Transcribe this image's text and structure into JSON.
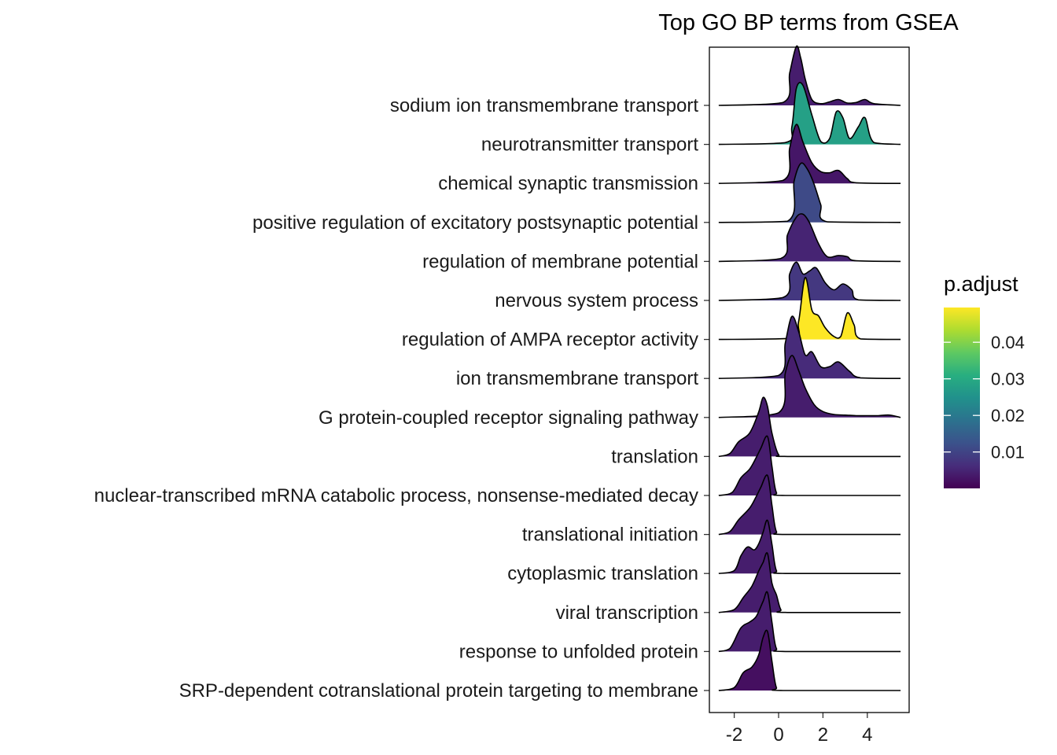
{
  "chart_data": {
    "type": "ridgeline",
    "title": "Top GO BP terms from GSEA",
    "xlabel": "",
    "ylabel": "",
    "xlim": [
      -3.1,
      5.8
    ],
    "xticks": [
      -2,
      0,
      2,
      4
    ],
    "xtick_labels": [
      "-2",
      "0",
      "2",
      "4"
    ],
    "grid": false,
    "colorbar": {
      "title": "p.adjust",
      "range": [
        5e-05,
        0.0495
      ],
      "ticks": [
        0.01,
        0.02,
        0.03,
        0.04
      ],
      "tick_labels": [
        "0.01",
        "0.02",
        "0.03",
        "0.04"
      ],
      "colormap": "viridis",
      "placement": "right"
    },
    "series": [
      {
        "name": "sodium ion transmembrane transport",
        "p_adjust": 0.004,
        "density_x": [
          -2.7,
          0.2,
          0.5,
          0.8,
          1.0,
          1.2,
          1.5,
          1.9,
          2.3,
          2.7,
          3.1,
          3.5,
          3.9,
          4.3,
          5.5
        ],
        "density_y": [
          0,
          0.05,
          0.55,
          1.0,
          0.8,
          0.45,
          0.1,
          0.03,
          0.06,
          0.1,
          0.04,
          0.05,
          0.1,
          0.03,
          0
        ]
      },
      {
        "name": "neurotransmitter transport",
        "p_adjust": 0.028,
        "density_x": [
          -2.7,
          0.3,
          0.6,
          0.8,
          1.1,
          1.5,
          1.9,
          2.3,
          2.6,
          2.9,
          3.2,
          3.6,
          3.9,
          4.3,
          5.5
        ],
        "density_y": [
          0,
          0.03,
          0.3,
          0.95,
          1.0,
          0.5,
          0.05,
          0.1,
          0.55,
          0.45,
          0.1,
          0.3,
          0.45,
          0.03,
          0
        ]
      },
      {
        "name": "chemical synaptic transmission",
        "p_adjust": 0.003,
        "density_x": [
          -2.7,
          0.2,
          0.5,
          0.8,
          1.1,
          1.5,
          1.9,
          2.3,
          2.7,
          3.1,
          3.5,
          5.5
        ],
        "density_y": [
          0,
          0.05,
          0.6,
          1.0,
          0.7,
          0.35,
          0.2,
          0.18,
          0.22,
          0.08,
          0.01,
          0
        ]
      },
      {
        "name": "positive regulation of excitatory postsynaptic potential",
        "p_adjust": 0.011,
        "density_x": [
          -2.7,
          0.4,
          0.7,
          1.0,
          1.3,
          1.6,
          1.9,
          2.2,
          5.5
        ],
        "density_y": [
          0,
          0.02,
          0.7,
          1.0,
          0.9,
          0.65,
          0.3,
          0.01,
          0
        ]
      },
      {
        "name": "regulation of membrane potential",
        "p_adjust": 0.005,
        "density_x": [
          -2.7,
          0.1,
          0.4,
          0.8,
          1.1,
          1.4,
          1.8,
          2.2,
          2.7,
          3.1,
          3.5,
          5.5
        ],
        "density_y": [
          0,
          0.05,
          0.45,
          0.75,
          0.8,
          0.65,
          0.3,
          0.08,
          0.1,
          0.08,
          0.01,
          0
        ]
      },
      {
        "name": "nervous system process",
        "p_adjust": 0.008,
        "density_x": [
          -2.7,
          0.2,
          0.5,
          0.8,
          1.1,
          1.4,
          1.7,
          2.1,
          2.5,
          2.9,
          3.3,
          3.6,
          5.5
        ],
        "density_y": [
          0,
          0.05,
          0.45,
          0.65,
          0.45,
          0.5,
          0.55,
          0.3,
          0.18,
          0.28,
          0.18,
          0.01,
          0
        ]
      },
      {
        "name": "regulation of AMPA receptor activity",
        "p_adjust": 0.0495,
        "density_x": [
          -2.7,
          0.6,
          0.9,
          1.2,
          1.5,
          1.8,
          2.1,
          2.5,
          2.8,
          3.1,
          3.4,
          3.7,
          5.5
        ],
        "density_y": [
          0,
          0.02,
          0.3,
          1.05,
          0.5,
          0.4,
          0.2,
          0.05,
          0.05,
          0.45,
          0.25,
          0.01,
          0
        ]
      },
      {
        "name": "ion transmembrane transport",
        "p_adjust": 0.006,
        "density_x": [
          -2.7,
          0.0,
          0.3,
          0.6,
          0.9,
          1.2,
          1.5,
          1.9,
          2.3,
          2.7,
          3.2,
          3.7,
          5.5
        ],
        "density_y": [
          0,
          0.05,
          0.6,
          1.05,
          0.8,
          0.4,
          0.45,
          0.2,
          0.2,
          0.28,
          0.12,
          0.01,
          0
        ]
      },
      {
        "name": "G protein-coupled receptor signaling pathway",
        "p_adjust": 0.004,
        "density_x": [
          -2.7,
          0.0,
          0.3,
          0.6,
          0.9,
          1.2,
          1.6,
          2.0,
          2.5,
          3.0,
          3.5,
          4.0,
          4.5,
          5.0,
          5.5
        ],
        "density_y": [
          0,
          0.08,
          0.75,
          1.05,
          0.8,
          0.5,
          0.22,
          0.1,
          0.05,
          0.04,
          0.03,
          0.03,
          0.03,
          0.04,
          0
        ]
      },
      {
        "name": "translation",
        "p_adjust": 0.004,
        "density_x": [
          -2.7,
          -2.2,
          -1.8,
          -1.3,
          -0.9,
          -0.7,
          -0.5,
          -0.3,
          0.0,
          0.4,
          5.5
        ],
        "density_y": [
          0,
          0.05,
          0.25,
          0.4,
          0.75,
          1.0,
          0.85,
          0.4,
          0.03,
          0,
          0
        ]
      },
      {
        "name": "nuclear-transcribed mRNA catabolic process, nonsense-mediated decay",
        "p_adjust": 0.004,
        "density_x": [
          -2.7,
          -2.1,
          -1.7,
          -1.3,
          -1.0,
          -0.8,
          -0.5,
          -0.3,
          -0.1,
          0.3,
          5.5
        ],
        "density_y": [
          0,
          0.05,
          0.3,
          0.45,
          0.65,
          0.8,
          1.0,
          0.5,
          0.05,
          0,
          0
        ]
      },
      {
        "name": "translational initiation",
        "p_adjust": 0.004,
        "density_x": [
          -2.7,
          -2.2,
          -1.8,
          -1.3,
          -1.0,
          -0.8,
          -0.5,
          -0.3,
          -0.1,
          0.3,
          5.5
        ],
        "density_y": [
          0,
          0.05,
          0.25,
          0.45,
          0.65,
          0.8,
          1.0,
          0.5,
          0.05,
          0,
          0
        ]
      },
      {
        "name": "cytoplasmic translation",
        "p_adjust": 0.004,
        "density_x": [
          -2.7,
          -2.0,
          -1.7,
          -1.4,
          -1.1,
          -0.9,
          -0.7,
          -0.5,
          -0.3,
          -0.1,
          0.3,
          5.5
        ],
        "density_y": [
          0,
          0.05,
          0.3,
          0.45,
          0.4,
          0.5,
          0.7,
          0.9,
          0.5,
          0.05,
          0,
          0
        ]
      },
      {
        "name": "viral transcription",
        "p_adjust": 0.004,
        "density_x": [
          -2.7,
          -2.0,
          -1.6,
          -1.2,
          -0.9,
          -0.7,
          -0.5,
          -0.3,
          -0.1,
          0.1,
          0.4,
          5.5
        ],
        "density_y": [
          0,
          0.05,
          0.25,
          0.45,
          0.7,
          0.85,
          1.0,
          0.5,
          0.3,
          0.05,
          0,
          0
        ]
      },
      {
        "name": "response to unfolded protein",
        "p_adjust": 0.004,
        "density_x": [
          -2.7,
          -2.2,
          -1.7,
          -1.3,
          -1.0,
          -0.7,
          -0.5,
          -0.3,
          -0.1,
          0.3,
          5.5
        ],
        "density_y": [
          0,
          0.05,
          0.4,
          0.5,
          0.6,
          0.85,
          1.0,
          0.5,
          0.05,
          0,
          0
        ]
      },
      {
        "name": "SRP-dependent cotranslational protein targeting to membrane",
        "p_adjust": 0.002,
        "density_x": [
          -2.7,
          -2.0,
          -1.6,
          -1.2,
          -0.9,
          -0.7,
          -0.5,
          -0.3,
          -0.1,
          0.2,
          5.5
        ],
        "density_y": [
          0,
          0.05,
          0.3,
          0.4,
          0.6,
          0.9,
          1.0,
          0.5,
          0.05,
          0,
          0
        ]
      }
    ]
  }
}
